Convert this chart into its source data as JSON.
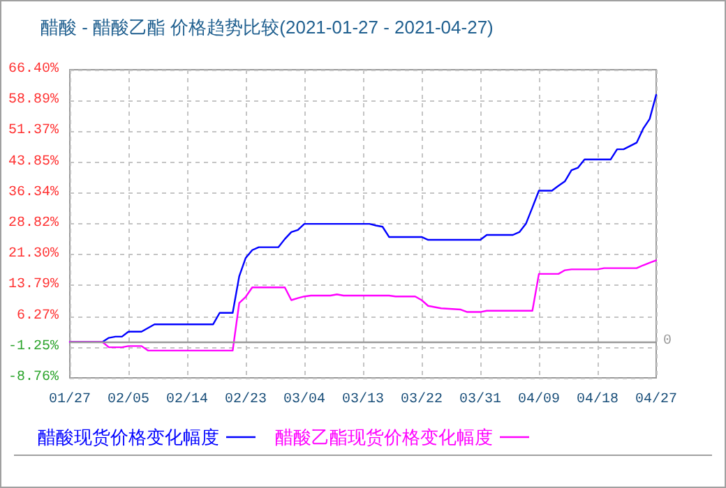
{
  "chart_data": {
    "type": "line",
    "title": "醋酸 - 醋酸乙酯 价格趋势比较(2021-01-27 - 2021-04-27)",
    "series": [
      {
        "name": "醋酸现货价格变化幅度",
        "color": "#0000ff",
        "x": [
          "--01-27",
          "--02-01",
          "--02-02",
          "--02-03",
          "--02-04",
          "--02-05",
          "--02-07",
          "--02-09",
          "--02-18",
          "--02-19",
          "--02-21",
          "--02-22",
          "--02-23",
          "--02-24",
          "--02-25",
          "--02-28",
          "--03-01",
          "--03-02",
          "--03-03",
          "--03-04",
          "--03-14",
          "--03-15",
          "--03-16",
          "--03-17",
          "--03-22",
          "--03-23",
          "--03-31",
          "--04-01",
          "--04-05",
          "--04-06",
          "--04-07",
          "--04-08",
          "--04-09",
          "--04-11",
          "--04-12",
          "--04-13",
          "--04-14",
          "--04-15",
          "--04-16",
          "--04-20",
          "--04-21",
          "--04-22",
          "--04-23",
          "--04-24",
          "--04-25",
          "--04-26",
          "--04-27"
        ],
        "values": [
          0,
          0,
          1.0,
          1.3,
          1.3,
          2.5,
          2.5,
          4.3,
          4.3,
          7.1,
          7.1,
          16.0,
          20.5,
          22.4,
          23.1,
          23.1,
          25.1,
          26.8,
          27.3,
          28.8,
          28.8,
          28.4,
          28.1,
          25.6,
          25.6,
          24.9,
          24.9,
          26.1,
          26.1,
          26.8,
          28.8,
          32.8,
          36.9,
          36.9,
          38.1,
          39.2,
          41.9,
          42.5,
          44.5,
          44.5,
          47.0,
          47.0,
          47.8,
          48.6,
          52.0,
          54.4,
          60.3
        ]
      },
      {
        "name": "醋酸乙酯现货价格变化幅度",
        "color": "#ff00ff",
        "x": [
          "--01-27",
          "--02-01",
          "--02-02",
          "--02-04",
          "--02-05",
          "--02-07",
          "--02-08",
          "--02-21",
          "--02-22",
          "--02-23",
          "--02-24",
          "--03-01",
          "--03-02",
          "--03-03",
          "--03-04",
          "--03-05",
          "--03-08",
          "--03-09",
          "--03-10",
          "--03-17",
          "--03-18",
          "--03-21",
          "--03-22",
          "--03-23",
          "--03-24",
          "--03-25",
          "--03-28",
          "--03-29",
          "--03-31",
          "--04-01",
          "--04-08",
          "--04-09",
          "--04-12",
          "--04-13",
          "--04-14",
          "--04-18",
          "--04-19",
          "--04-24",
          "--04-25",
          "--04-26",
          "--04-27"
        ],
        "values": [
          0,
          0,
          -1.3,
          -1.3,
          -1.0,
          -1.0,
          -2.1,
          -2.1,
          9.5,
          11.0,
          13.3,
          13.3,
          10.2,
          10.7,
          11.1,
          11.3,
          11.3,
          11.6,
          11.3,
          11.3,
          11.1,
          11.1,
          10.2,
          8.8,
          8.5,
          8.2,
          7.9,
          7.3,
          7.3,
          7.6,
          7.6,
          16.6,
          16.6,
          17.5,
          17.7,
          17.7,
          18.0,
          18.0,
          18.7,
          19.3,
          19.9
        ]
      }
    ],
    "xlim": [
      "--01-27",
      "--04-27"
    ],
    "xticks": [
      {
        "value": "--01-27",
        "label": "01/27"
      },
      {
        "value": "--02-05",
        "label": "02/05"
      },
      {
        "value": "--02-14",
        "label": "02/14"
      },
      {
        "value": "--02-23",
        "label": "02/23"
      },
      {
        "value": "--03-04",
        "label": "03/04"
      },
      {
        "value": "--03-13",
        "label": "03/13"
      },
      {
        "value": "--03-22",
        "label": "03/22"
      },
      {
        "value": "--03-31",
        "label": "03/31"
      },
      {
        "value": "--04-09",
        "label": "04/09"
      },
      {
        "value": "--04-18",
        "label": "04/18"
      },
      {
        "value": "--04-27",
        "label": "04/27"
      }
    ],
    "ylim": [
      -8.76,
      66.4
    ],
    "yticks": [
      {
        "value": -8.76,
        "label": "-8.76%"
      },
      {
        "value": -1.25,
        "label": "-1.25%"
      },
      {
        "value": 6.27,
        "label": "6.27%"
      },
      {
        "value": 13.79,
        "label": "13.79%"
      },
      {
        "value": 21.3,
        "label": "21.30%"
      },
      {
        "value": 28.82,
        "label": "28.82%"
      },
      {
        "value": 36.34,
        "label": "36.34%"
      },
      {
        "value": 43.85,
        "label": "43.85%"
      },
      {
        "value": 51.37,
        "label": "51.37%"
      },
      {
        "value": 58.89,
        "label": "58.89%"
      },
      {
        "value": 66.4,
        "label": "66.40%"
      }
    ],
    "ref_lines": [
      {
        "axis": "y",
        "value": 0,
        "label": "0",
        "color": "#999999"
      }
    ],
    "grid": true,
    "legend": "bottom left"
  }
}
